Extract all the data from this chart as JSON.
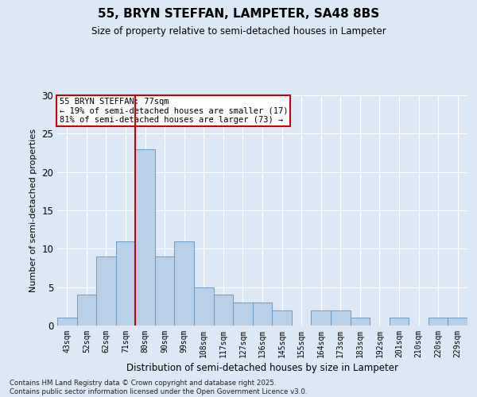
{
  "title_line1": "55, BRYN STEFFAN, LAMPETER, SA48 8BS",
  "title_line2": "Size of property relative to semi-detached houses in Lampeter",
  "xlabel": "Distribution of semi-detached houses by size in Lampeter",
  "ylabel": "Number of semi-detached properties",
  "categories": [
    "43sqm",
    "52sqm",
    "62sqm",
    "71sqm",
    "80sqm",
    "90sqm",
    "99sqm",
    "108sqm",
    "117sqm",
    "127sqm",
    "136sqm",
    "145sqm",
    "155sqm",
    "164sqm",
    "173sqm",
    "183sqm",
    "192sqm",
    "201sqm",
    "210sqm",
    "220sqm",
    "229sqm"
  ],
  "values": [
    1,
    4,
    9,
    11,
    23,
    9,
    11,
    5,
    4,
    3,
    3,
    2,
    0,
    2,
    2,
    1,
    0,
    1,
    0,
    1,
    1
  ],
  "bar_color": "#b8d0e8",
  "bar_edge_color": "#6090bb",
  "background_color": "#dce8f5",
  "grid_color": "#ffffff",
  "vline_color": "#cc0000",
  "annotation_title": "55 BRYN STEFFAN: 77sqm",
  "annotation_line1": "← 19% of semi-detached houses are smaller (17)",
  "annotation_line2": "81% of semi-detached houses are larger (73) →",
  "annotation_box_color": "#ffffff",
  "annotation_box_edge_color": "#cc0000",
  "footnote1": "Contains HM Land Registry data © Crown copyright and database right 2025.",
  "footnote2": "Contains public sector information licensed under the Open Government Licence v3.0.",
  "ylim": [
    0,
    30
  ],
  "yticks": [
    0,
    5,
    10,
    15,
    20,
    25,
    30
  ]
}
